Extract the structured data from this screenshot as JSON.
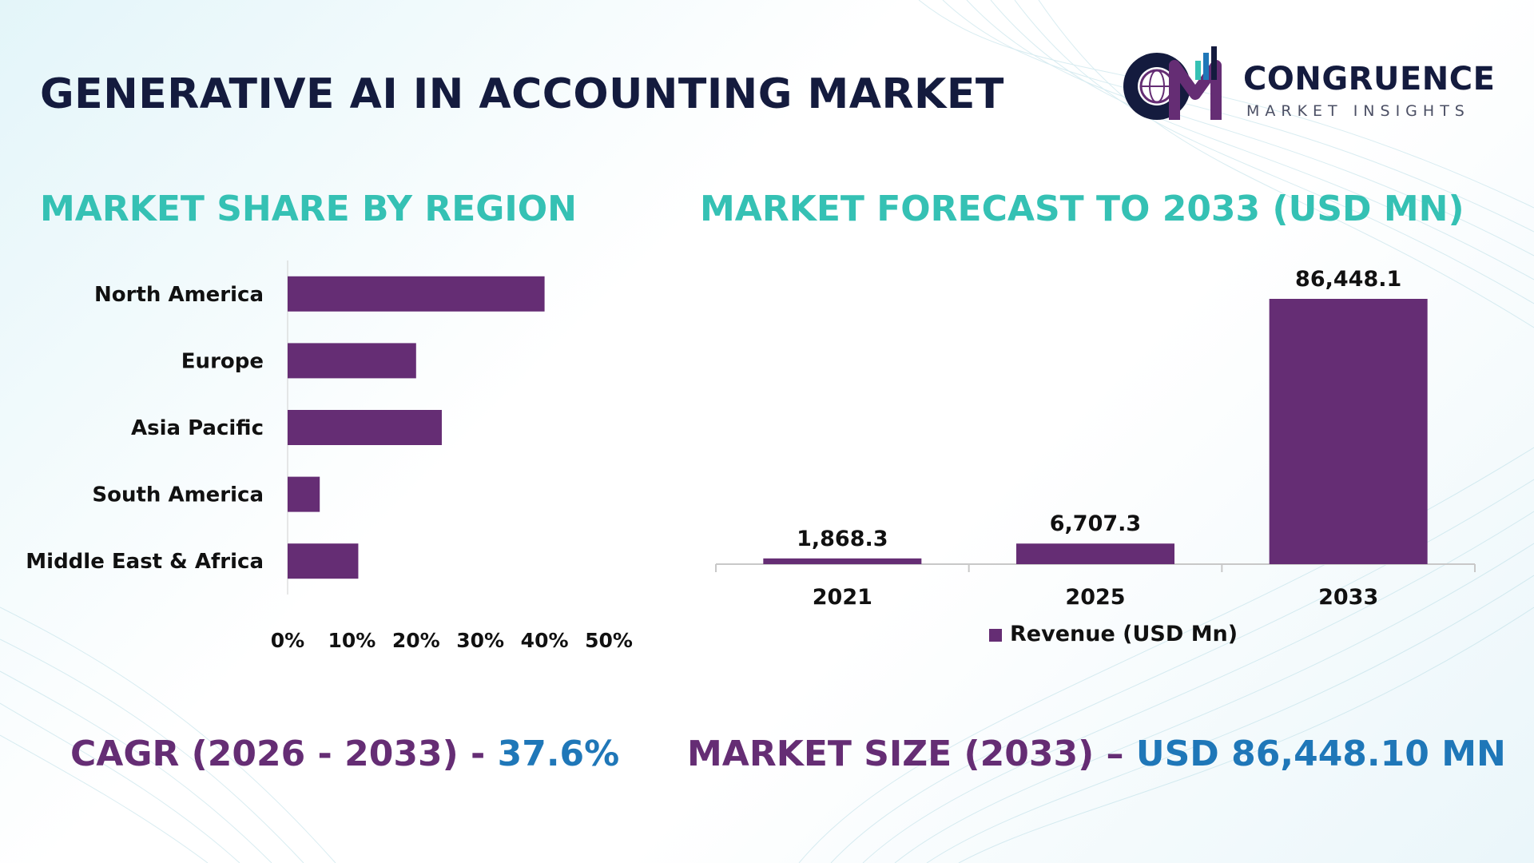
{
  "title": "GENERATIVE AI IN ACCOUNTING MARKET",
  "brand": {
    "name": "CONGRUENCE",
    "tagline": "MARKET INSIGHTS"
  },
  "colors": {
    "bar": "#652d74",
    "teal": "#35c1b4",
    "navy": "#141b3e",
    "blue": "#1f77b8"
  },
  "sections": {
    "share_title": "MARKET SHARE BY REGION",
    "forecast_title": "MARKET FORECAST TO 2033 (USD MN)"
  },
  "footer": {
    "cagr_label": "CAGR (2026 - 2033) -",
    "cagr_value": "37.6%",
    "size_label": "MARKET SIZE (2033) –",
    "size_value": "USD 86,448.10 MN"
  },
  "chart_data": [
    {
      "type": "bar",
      "orientation": "horizontal",
      "categories": [
        "North America",
        "Europe",
        "Asia Pacific",
        "South America",
        "Middle East & Africa"
      ],
      "values": [
        40,
        20,
        24,
        5,
        11
      ],
      "unit": "%",
      "xlim": [
        0,
        50
      ],
      "xticks": [
        "0%",
        "10%",
        "20%",
        "30%",
        "40%",
        "50%"
      ],
      "grid": false,
      "legend": "none"
    },
    {
      "type": "bar",
      "categories": [
        "2021",
        "2025",
        "2033"
      ],
      "series": [
        {
          "name": "Revenue (USD Mn)",
          "values": [
            1868.3,
            6707.3,
            86448.1
          ]
        }
      ],
      "data_labels": [
        "1,868.3",
        "6,707.3",
        "86,448.1"
      ],
      "ylim": [
        0,
        86448.1
      ],
      "grid": false,
      "legend": "bottom"
    }
  ]
}
